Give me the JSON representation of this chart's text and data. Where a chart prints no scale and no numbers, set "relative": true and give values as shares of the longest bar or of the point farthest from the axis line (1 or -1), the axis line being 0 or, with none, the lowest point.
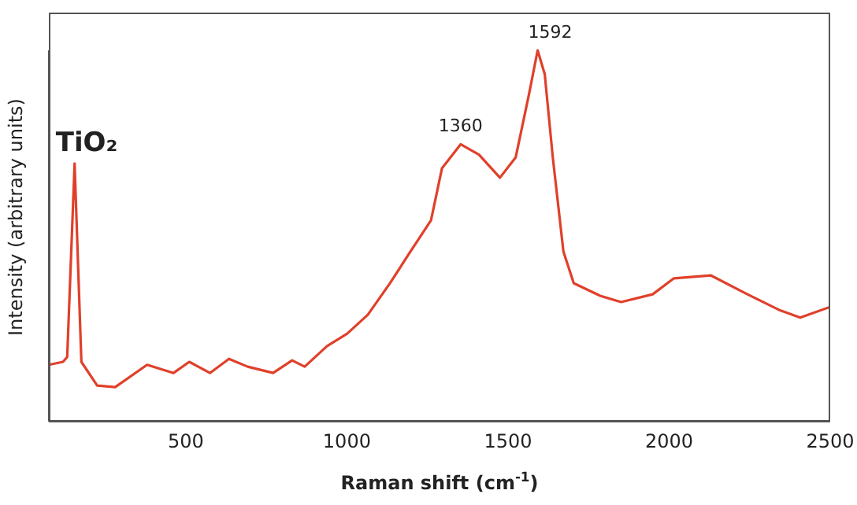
{
  "chart_data": {
    "type": "line",
    "relative": true,
    "xlabel": "Raman shift (cm$^{-1}$)",
    "ylabel": "Intensity (arbitrary units)",
    "xlim": [
      75,
      2500
    ],
    "xticks": [
      500,
      1000,
      1500,
      2000,
      2500
    ],
    "grid": false,
    "legend": false,
    "marker": "none",
    "line_style": "solid",
    "annotations": [
      {
        "text": "TiO₂",
        "x": 155,
        "y": 0.695
      },
      {
        "text": "1360",
        "x": 1353,
        "y": 0.747
      },
      {
        "text": "1592",
        "x": 1592,
        "y": 1
      }
    ],
    "x": [
      75,
      119,
      132,
      155,
      176,
      225,
      281,
      380,
      462,
      511,
      575,
      634,
      692,
      771,
      830,
      869,
      938,
      1001,
      1065,
      1134,
      1197,
      1261,
      1295,
      1353,
      1410,
      1475,
      1524,
      1565,
      1592,
      1614,
      1639,
      1672,
      1704,
      1786,
      1851,
      1949,
      2015,
      2129,
      2243,
      2341,
      2407,
      2500
    ],
    "series": [
      {
        "color": "#e0402a",
        "values": [
          0.153,
          0.161,
          0.174,
          0.695,
          0.161,
          0.097,
          0.093,
          0.153,
          0.131,
          0.161,
          0.131,
          0.169,
          0.148,
          0.131,
          0.165,
          0.148,
          0.203,
          0.237,
          0.288,
          0.373,
          0.458,
          0.542,
          0.682,
          0.747,
          0.719,
          0.657,
          0.712,
          0.881,
          1,
          0.936,
          0.712,
          0.458,
          0.373,
          0.339,
          0.322,
          0.343,
          0.386,
          0.394,
          0.343,
          0.301,
          0.28,
          0.309
        ]
      }
    ]
  }
}
